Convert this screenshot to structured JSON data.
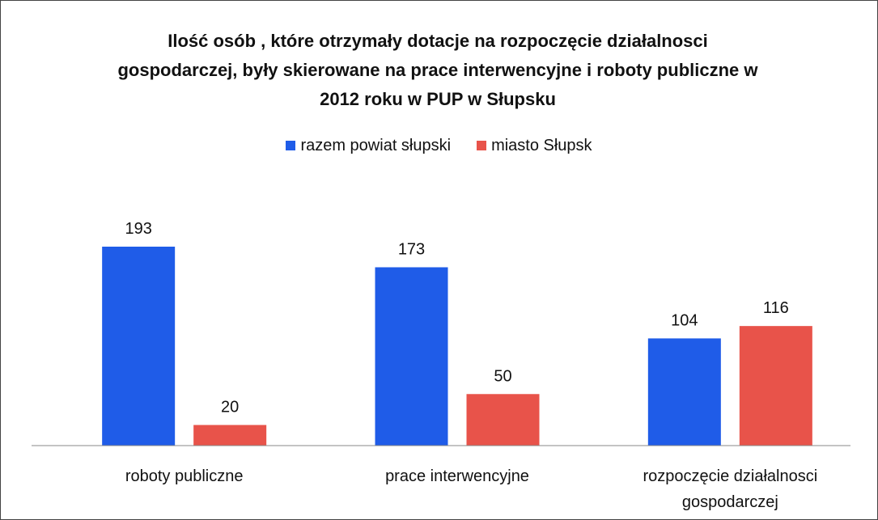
{
  "chart_data": {
    "type": "bar",
    "title": "Ilość osób , które otrzymały dotacje na rozpoczęcie działalnosci gospodarczej, były skierowane na prace interwencyjne i roboty publiczne w 2012 roku w PUP w Słupsku",
    "categories": [
      "roboty publiczne",
      "prace interwencyjne",
      "rozpoczęcie działalnosci gospodarczej"
    ],
    "series": [
      {
        "name": "razem powiat słupski",
        "color": "#1f5ce8",
        "values": [
          193,
          173,
          104
        ]
      },
      {
        "name": "miasto Słupsk",
        "color": "#e8534a",
        "values": [
          20,
          50,
          116
        ]
      }
    ],
    "legend": "top"
  }
}
